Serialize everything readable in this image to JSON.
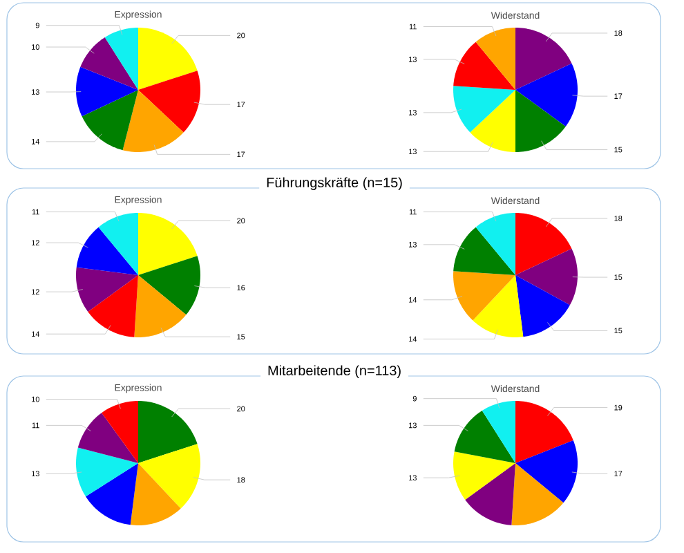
{
  "chart_data": [
    {
      "type": "pie",
      "title": "Expression",
      "categories": [
        null,
        null,
        null,
        null,
        null,
        null,
        null
      ],
      "values": [
        20,
        17,
        17,
        14,
        13,
        10,
        9
      ],
      "colors": [
        "#ffff00",
        "#ff0000",
        "#ffa500",
        "#008000",
        "#0000ff",
        "#800080",
        "#11f0f0"
      ],
      "data_labels": true
    },
    {
      "type": "pie",
      "title": "Widerstand",
      "categories": [
        null,
        null,
        null,
        null,
        null,
        null,
        null
      ],
      "values": [
        18,
        17,
        15,
        13,
        13,
        13,
        11
      ],
      "colors": [
        "#800080",
        "#0000ff",
        "#008000",
        "#ffff00",
        "#11f0f0",
        "#ff0000",
        "#ffa500"
      ],
      "data_labels": true
    },
    {
      "type": "pie",
      "title": "Expression",
      "subtitle": "Führungskräfte (n=15)",
      "categories": [
        null,
        null,
        null,
        null,
        null,
        null,
        null
      ],
      "values": [
        20,
        16,
        15,
        14,
        12,
        12,
        11
      ],
      "colors": [
        "#ffff00",
        "#008000",
        "#ffa500",
        "#ff0000",
        "#800080",
        "#0000ff",
        "#11f0f0"
      ],
      "data_labels": true
    },
    {
      "type": "pie",
      "title": "Widerstand",
      "categories": [
        null,
        null,
        null,
        null,
        null,
        null,
        null
      ],
      "values": [
        18,
        15,
        15,
        14,
        14,
        13,
        11
      ],
      "colors": [
        "#ff0000",
        "#800080",
        "#0000ff",
        "#ffff00",
        "#ffa500",
        "#008000",
        "#11f0f0"
      ],
      "data_labels": true
    },
    {
      "type": "pie",
      "title": "Expression",
      "subtitle": "Mitarbeitende (n=113)",
      "categories": [
        null,
        null,
        null,
        null,
        null,
        null,
        null
      ],
      "values": [
        20,
        18,
        14,
        14,
        13,
        11,
        10
      ],
      "colors": [
        "#008000",
        "#ffff00",
        "#ffa500",
        "#0000ff",
        "#11f0f0",
        "#800080",
        "#ff0000"
      ],
      "value_labels": [
        "20",
        "18",
        null,
        null,
        "13",
        "11",
        "10"
      ]
    },
    {
      "type": "pie",
      "title": "Widerstand",
      "categories": [
        null,
        null,
        null,
        null,
        null,
        null,
        null
      ],
      "values": [
        19,
        17,
        15,
        14,
        13,
        13,
        9
      ],
      "colors": [
        "#ff0000",
        "#0000ff",
        "#ffa500",
        "#800080",
        "#ffff00",
        "#008000",
        "#11f0f0"
      ],
      "value_labels": [
        "19",
        "17",
        null,
        null,
        "13",
        "13",
        "9"
      ]
    }
  ]
}
